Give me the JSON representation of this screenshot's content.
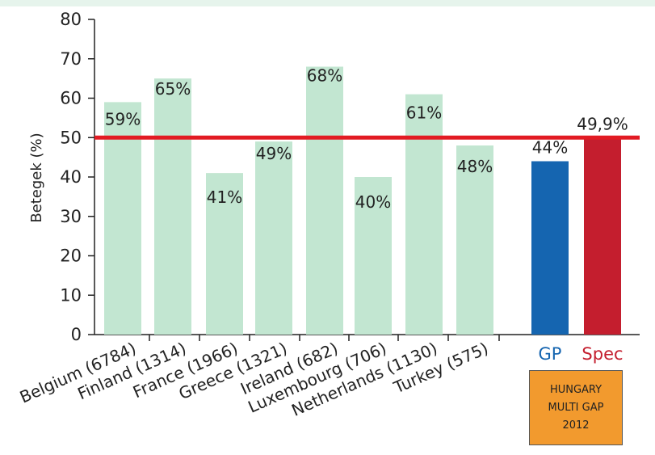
{
  "chart_data": {
    "type": "bar",
    "title": "",
    "xlabel": "",
    "ylabel": "Betegek (%)",
    "ylim": [
      0,
      80
    ],
    "yticks": [
      "0",
      "10",
      "20",
      "30",
      "40",
      "50",
      "60",
      "70",
      "80"
    ],
    "grid": false,
    "categories": [
      "Belgium (6784)",
      "Finland (1314)",
      "France (1966)",
      "Greece (1321)",
      "Ireland (682)",
      "Luxembourg (706)",
      "Netherlands (1130)",
      "Turkey (575)"
    ],
    "values": [
      59,
      65,
      41,
      49,
      68,
      40,
      61,
      48
    ],
    "data_labels": [
      "59%",
      "65%",
      "41%",
      "49%",
      "68%",
      "40%",
      "61%",
      "48%"
    ],
    "hungary_categories": [
      "GP",
      "Spec"
    ],
    "hungary_values": [
      44,
      49.9
    ],
    "hungary_data_labels": [
      "44%",
      "49,9%"
    ],
    "reference_line": 50,
    "colors": {
      "country_bar": "#c2e6d1",
      "gp_bar": "#1565b0",
      "spec_bar": "#c41e2e",
      "reference_line": "#e21b23",
      "hungary_box": "#f29a2e"
    }
  },
  "hungary_box": {
    "line1": "HUNGARY",
    "line2": "MULTI GAP",
    "line3": "2012"
  }
}
